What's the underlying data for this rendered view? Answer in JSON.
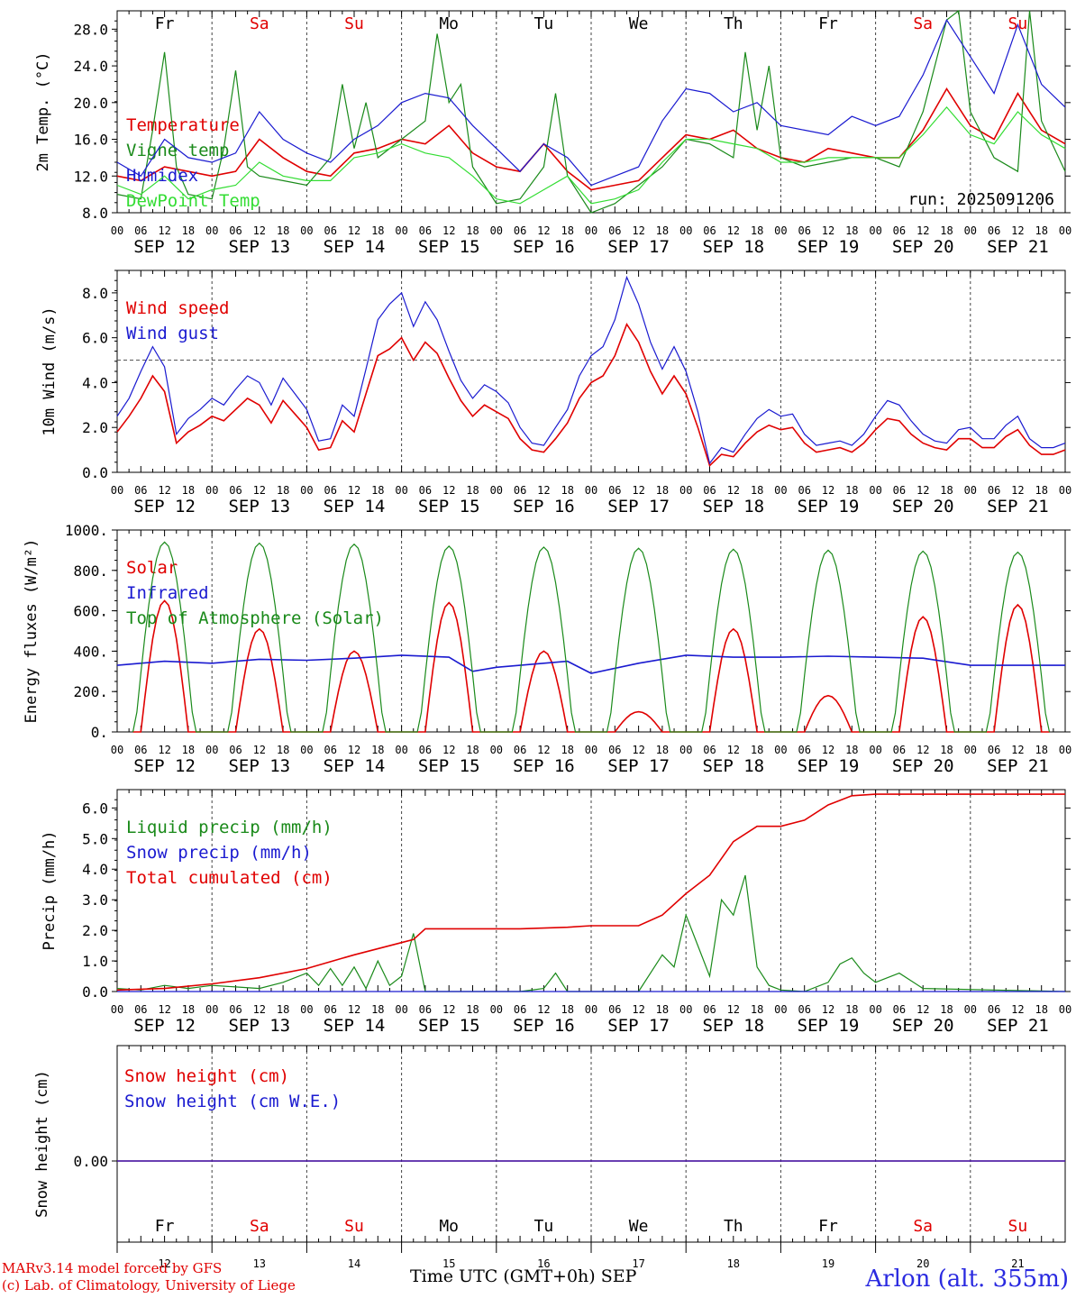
{
  "days": [
    "Fr",
    "Sa",
    "Su",
    "Mo",
    "Tu",
    "We",
    "Th",
    "Fr",
    "Sa",
    "Su"
  ],
  "weekend_flags": [
    false,
    true,
    true,
    false,
    false,
    false,
    false,
    false,
    true,
    true
  ],
  "dates": [
    "SEP 12",
    "SEP 13",
    "SEP 14",
    "SEP 15",
    "SEP 16",
    "SEP 17",
    "SEP 18",
    "SEP 19",
    "SEP 20",
    "SEP 21"
  ],
  "day_numbers": [
    "12",
    "13",
    "14",
    "15",
    "16",
    "17",
    "18",
    "19",
    "20",
    "21"
  ],
  "hour_labels": [
    "00",
    "06",
    "12",
    "18"
  ],
  "last_hour_label": "00",
  "run_label": "run: 2025091206",
  "footer": {
    "model": "MARv3.14 model forced by GFS",
    "lab": "(c) Lab. of Climatology, University of Liege",
    "xtitle": "Time UTC (GMT+0h)",
    "month": "SEP",
    "station": "Arlon (alt. 355m)"
  },
  "colors": {
    "red": "#e00000",
    "green": "#1a8a1a",
    "blue": "#1a1ad0",
    "lightgreen": "#33dd33",
    "weekend": "#e00000"
  },
  "chart_data": [
    {
      "type": "line",
      "ylabel": "2m Temp. (°C)",
      "ylim": [
        8,
        30
      ],
      "yticks": [
        "8.0",
        "12.0",
        "16.0",
        "20.0",
        "24.0",
        "28.0"
      ],
      "x_unit": "hours since SEP 12 00 UTC",
      "series": [
        {
          "name": "Temperature",
          "color": "red",
          "x": [
            0,
            6,
            12,
            18,
            24,
            30,
            36,
            42,
            48,
            54,
            60,
            66,
            72,
            78,
            84,
            90,
            96,
            102,
            108,
            114,
            120,
            126,
            132,
            138,
            144,
            150,
            156,
            162,
            168,
            174,
            180,
            186,
            192,
            198,
            204,
            210,
            216,
            222,
            228,
            234,
            240
          ],
          "y": [
            12,
            11.5,
            13,
            12.5,
            12,
            12.5,
            16,
            14,
            12.5,
            12,
            14.5,
            15,
            16,
            15.5,
            17.5,
            14.5,
            13,
            12.5,
            15.5,
            12.5,
            10.5,
            11,
            11.5,
            14,
            16.5,
            16,
            17,
            15,
            14,
            13.5,
            15,
            14.5,
            14,
            14,
            17,
            21.5,
            17.5,
            16,
            21,
            17,
            15.5
          ]
        },
        {
          "name": "Vigne temp",
          "color": "green",
          "x": [
            0,
            6,
            9,
            12,
            15,
            18,
            24,
            27,
            30,
            33,
            36,
            42,
            48,
            54,
            57,
            60,
            63,
            66,
            72,
            78,
            81,
            84,
            87,
            90,
            96,
            102,
            108,
            111,
            114,
            120,
            126,
            132,
            138,
            144,
            150,
            156,
            159,
            162,
            165,
            168,
            174,
            180,
            186,
            192,
            198,
            204,
            210,
            213,
            216,
            222,
            228,
            231,
            234,
            240
          ],
          "y": [
            10,
            9.5,
            17,
            25.5,
            13,
            10,
            9.5,
            15,
            23.5,
            13,
            12,
            11.5,
            11,
            14,
            22,
            15,
            20,
            14,
            16,
            18,
            27.5,
            20,
            22,
            13,
            9,
            9.5,
            13,
            21,
            12,
            8,
            9,
            11,
            13,
            16,
            15.5,
            14,
            25.5,
            17,
            24,
            14,
            13,
            13.5,
            14,
            14,
            13,
            19,
            29,
            30,
            19,
            14,
            12.5,
            30,
            18,
            12.5
          ]
        },
        {
          "name": "Humidex",
          "color": "blue",
          "x": [
            0,
            6,
            12,
            18,
            24,
            30,
            36,
            42,
            48,
            54,
            60,
            66,
            72,
            78,
            84,
            90,
            96,
            102,
            108,
            114,
            120,
            126,
            132,
            138,
            144,
            150,
            156,
            162,
            168,
            174,
            180,
            186,
            192,
            198,
            204,
            210,
            216,
            222,
            228,
            234,
            240
          ],
          "y": [
            13.5,
            12,
            16,
            14,
            13.5,
            14.5,
            19,
            16,
            14.5,
            13.5,
            16,
            17.5,
            20,
            21,
            20.5,
            17.5,
            15,
            12.5,
            15.5,
            14,
            11,
            12,
            13,
            18,
            21.5,
            21,
            19,
            20,
            17.5,
            17,
            16.5,
            18.5,
            17.5,
            18.5,
            23,
            29,
            25,
            21,
            28.5,
            22,
            19.5
          ]
        },
        {
          "name": "DewPoint Temp",
          "color": "lightgreen",
          "x": [
            0,
            6,
            12,
            18,
            24,
            30,
            36,
            42,
            48,
            54,
            60,
            66,
            72,
            78,
            84,
            90,
            96,
            102,
            108,
            114,
            120,
            126,
            132,
            138,
            144,
            150,
            156,
            162,
            168,
            174,
            180,
            186,
            192,
            198,
            204,
            210,
            216,
            222,
            228,
            234,
            240
          ],
          "y": [
            11,
            10,
            12,
            9.5,
            10.5,
            11,
            13.5,
            12,
            11.5,
            11.5,
            14,
            14.5,
            15.5,
            14.5,
            14,
            12,
            9.5,
            9,
            10.5,
            12,
            9,
            9.5,
            10.5,
            13.5,
            16,
            16,
            15.5,
            15,
            13.5,
            13.5,
            14,
            14,
            14,
            14,
            16.5,
            19.5,
            16.5,
            15.5,
            19,
            16.5,
            15
          ]
        }
      ]
    },
    {
      "type": "line",
      "ylabel": "10m Wind (m/s)",
      "ylim": [
        0,
        9
      ],
      "yticks": [
        "0.0",
        "2.0",
        "4.0",
        "6.0",
        "8.0"
      ],
      "reference_line": 5,
      "series": [
        {
          "name": "Wind speed",
          "color": "red",
          "x": [
            0,
            3,
            6,
            9,
            12,
            15,
            18,
            21,
            24,
            27,
            30,
            33,
            36,
            39,
            42,
            45,
            48,
            51,
            54,
            57,
            60,
            63,
            66,
            69,
            72,
            75,
            78,
            81,
            84,
            87,
            90,
            93,
            96,
            99,
            102,
            105,
            108,
            111,
            114,
            117,
            120,
            123,
            126,
            129,
            132,
            135,
            138,
            141,
            144,
            147,
            150,
            153,
            156,
            159,
            162,
            165,
            168,
            171,
            174,
            177,
            180,
            183,
            186,
            189,
            192,
            195,
            198,
            201,
            204,
            207,
            210,
            213,
            216,
            219,
            222,
            225,
            228,
            231,
            234,
            237,
            240
          ],
          "y": [
            1.8,
            2.5,
            3.3,
            4.3,
            3.6,
            1.3,
            1.8,
            2.1,
            2.5,
            2.3,
            2.8,
            3.3,
            3.0,
            2.2,
            3.2,
            2.6,
            2.0,
            1.0,
            1.1,
            2.3,
            1.8,
            3.5,
            5.2,
            5.5,
            6.0,
            5.0,
            5.8,
            5.3,
            4.2,
            3.2,
            2.5,
            3.0,
            2.7,
            2.4,
            1.5,
            1.0,
            0.9,
            1.5,
            2.2,
            3.3,
            4.0,
            4.3,
            5.2,
            6.6,
            5.8,
            4.5,
            3.5,
            4.3,
            3.5,
            2.0,
            0.3,
            0.8,
            0.7,
            1.3,
            1.8,
            2.1,
            1.9,
            2.0,
            1.3,
            0.9,
            1.0,
            1.1,
            0.9,
            1.3,
            1.9,
            2.4,
            2.3,
            1.7,
            1.3,
            1.1,
            1.0,
            1.5,
            1.5,
            1.1,
            1.1,
            1.6,
            1.9,
            1.2,
            0.8,
            0.8,
            1.0
          ]
        },
        {
          "name": "Wind gust",
          "color": "blue",
          "x": [
            0,
            3,
            6,
            9,
            12,
            15,
            18,
            21,
            24,
            27,
            30,
            33,
            36,
            39,
            42,
            45,
            48,
            51,
            54,
            57,
            60,
            63,
            66,
            69,
            72,
            75,
            78,
            81,
            84,
            87,
            90,
            93,
            96,
            99,
            102,
            105,
            108,
            111,
            114,
            117,
            120,
            123,
            126,
            129,
            132,
            135,
            138,
            141,
            144,
            147,
            150,
            153,
            156,
            159,
            162,
            165,
            168,
            171,
            174,
            177,
            180,
            183,
            186,
            189,
            192,
            195,
            198,
            201,
            204,
            207,
            210,
            213,
            216,
            219,
            222,
            225,
            228,
            231,
            234,
            237,
            240
          ],
          "y": [
            2.5,
            3.3,
            4.5,
            5.6,
            4.7,
            1.7,
            2.4,
            2.8,
            3.3,
            3.0,
            3.7,
            4.3,
            4.0,
            3.0,
            4.2,
            3.5,
            2.8,
            1.4,
            1.5,
            3.0,
            2.5,
            4.6,
            6.8,
            7.5,
            8.0,
            6.5,
            7.6,
            6.8,
            5.4,
            4.1,
            3.3,
            3.9,
            3.6,
            3.1,
            2.0,
            1.3,
            1.2,
            2.0,
            2.8,
            4.3,
            5.2,
            5.6,
            6.8,
            8.7,
            7.5,
            5.8,
            4.6,
            5.6,
            4.5,
            2.7,
            0.4,
            1.1,
            0.9,
            1.7,
            2.4,
            2.8,
            2.5,
            2.6,
            1.7,
            1.2,
            1.3,
            1.4,
            1.2,
            1.7,
            2.5,
            3.2,
            3.0,
            2.3,
            1.7,
            1.4,
            1.3,
            1.9,
            2.0,
            1.5,
            1.5,
            2.1,
            2.5,
            1.5,
            1.1,
            1.1,
            1.3
          ]
        }
      ]
    },
    {
      "type": "line",
      "ylabel": "Energy fluxes (W/m²)",
      "ylim": [
        0,
        1000
      ],
      "yticks": [
        "0.",
        "200.",
        "400.",
        "600.",
        "800.",
        "1000."
      ],
      "series": [
        {
          "name": "Solar",
          "color": "red",
          "day_peak_hour": 12,
          "peaks": [
            650,
            510,
            400,
            640,
            400,
            100,
            510,
            180,
            570,
            630
          ]
        },
        {
          "name": "Infrared",
          "color": "blue",
          "x": [
            0,
            12,
            24,
            36,
            48,
            60,
            72,
            84,
            90,
            96,
            108,
            114,
            120,
            132,
            144,
            156,
            168,
            180,
            192,
            204,
            216,
            228,
            240
          ],
          "y": [
            330,
            350,
            340,
            360,
            355,
            365,
            380,
            370,
            300,
            320,
            340,
            350,
            290,
            340,
            380,
            370,
            370,
            375,
            370,
            365,
            330,
            330,
            330
          ]
        },
        {
          "name": "Top of Atmosphere (Solar)",
          "color": "green",
          "day_peak_hour": 12,
          "peaks": [
            940,
            935,
            930,
            920,
            915,
            910,
            905,
            900,
            895,
            890
          ]
        }
      ]
    },
    {
      "type": "line",
      "ylabel": "Precip (mm/h)",
      "ylim": [
        0,
        6.6
      ],
      "yticks": [
        "0.0",
        "1.0",
        "2.0",
        "3.0",
        "4.0",
        "5.0",
        "6.0"
      ],
      "series": [
        {
          "name": "Liquid precip (mm/h)",
          "color": "green",
          "x": [
            0,
            6,
            12,
            18,
            24,
            30,
            36,
            42,
            48,
            51,
            54,
            57,
            60,
            63,
            66,
            69,
            72,
            75,
            78,
            81,
            84,
            90,
            96,
            102,
            108,
            111,
            114,
            120,
            126,
            132,
            138,
            141,
            144,
            147,
            150,
            153,
            156,
            159,
            162,
            165,
            168,
            174,
            180,
            183,
            186,
            189,
            192,
            198,
            204,
            240
          ],
          "y": [
            0.1,
            0.05,
            0.2,
            0.1,
            0.2,
            0.15,
            0.1,
            0.3,
            0.6,
            0.2,
            0.75,
            0.2,
            0.8,
            0.1,
            1.0,
            0.2,
            0.5,
            1.9,
            0.0,
            0.0,
            0.0,
            0.0,
            0.0,
            0.0,
            0.1,
            0.6,
            0.0,
            0.0,
            0.0,
            0.0,
            1.2,
            0.8,
            2.5,
            1.5,
            0.5,
            3.0,
            2.5,
            3.8,
            0.8,
            0.2,
            0.05,
            0.0,
            0.3,
            0.9,
            1.1,
            0.6,
            0.3,
            0.6,
            0.1,
            0.0
          ]
        },
        {
          "name": "Snow precip (mm/h)",
          "color": "blue",
          "x": [
            0,
            240
          ],
          "y": [
            0,
            0
          ]
        },
        {
          "name": "Total cumulated (cm)",
          "color": "red",
          "x": [
            0,
            12,
            24,
            36,
            48,
            60,
            72,
            75,
            78,
            90,
            102,
            114,
            120,
            132,
            138,
            144,
            150,
            156,
            162,
            168,
            174,
            180,
            186,
            192,
            240
          ],
          "y": [
            0.05,
            0.1,
            0.25,
            0.45,
            0.75,
            1.2,
            1.6,
            1.7,
            2.05,
            2.05,
            2.05,
            2.1,
            2.15,
            2.15,
            2.5,
            3.2,
            3.8,
            4.9,
            5.4,
            5.4,
            5.6,
            6.1,
            6.4,
            6.45,
            6.45
          ]
        }
      ]
    },
    {
      "type": "line",
      "ylabel": "Snow height (cm)",
      "yticks": [
        "0.00"
      ],
      "series": [
        {
          "name": "Snow height (cm)",
          "color": "red",
          "x": [
            0,
            240
          ],
          "y": [
            0,
            0
          ]
        },
        {
          "name": "Snow height (cm W.E.)",
          "color": "blue",
          "x": [
            0,
            240
          ],
          "y": [
            0,
            0
          ]
        }
      ]
    }
  ]
}
